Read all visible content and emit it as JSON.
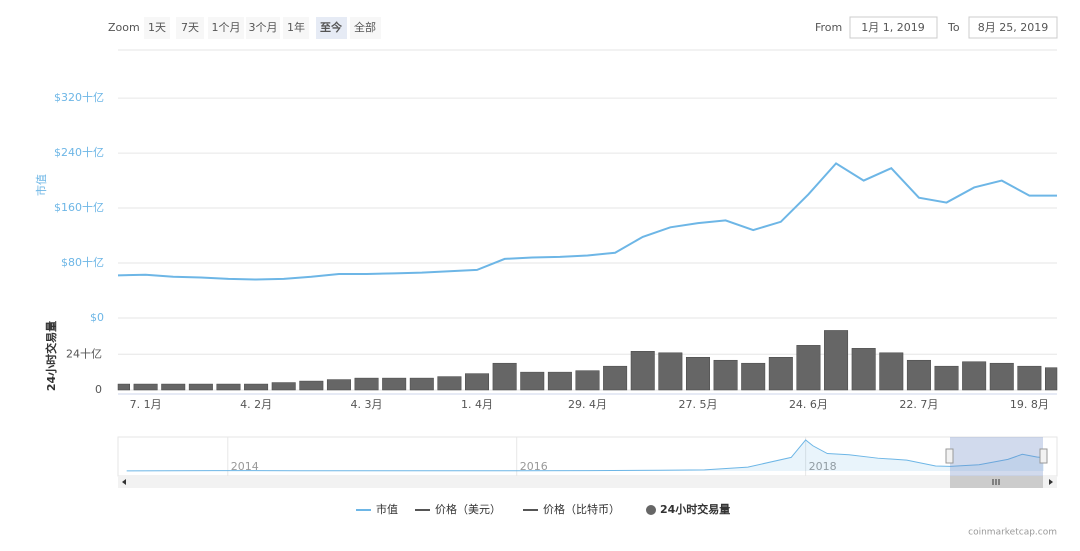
{
  "chart_data": [
    {
      "type": "line",
      "ylabel": "市值",
      "y2label": "24小时交易量",
      "categories": [
        null,
        "7. 1月",
        null,
        null,
        null,
        "4. 2月",
        null,
        null,
        null,
        "4. 3月",
        null,
        null,
        null,
        "1. 4月",
        null,
        null,
        null,
        "29. 4月",
        null,
        null,
        null,
        "27. 5月",
        null,
        null,
        null,
        "24. 6月",
        null,
        null,
        null,
        "22. 7月",
        null,
        null,
        null,
        "19. 8月",
        null
      ],
      "series": [
        {
          "name": "市值",
          "color": "#6db6e6",
          "values": [
            62,
            63,
            60,
            59,
            57,
            56,
            57,
            60,
            64,
            64,
            65,
            66,
            68,
            70,
            86,
            88,
            89,
            91,
            95,
            118,
            132,
            138,
            142,
            128,
            140,
            180,
            225,
            200,
            218,
            175,
            168,
            190,
            200,
            178,
            178
          ]
        },
        {
          "name": "价格（美元）",
          "color": "#555555",
          "visible": false
        },
        {
          "name": "价格（比特币）",
          "color": "#555555",
          "visible": false
        },
        {
          "name": "24小时交易量",
          "color": "#666666",
          "type": "bar",
          "axis": "y2",
          "values": [
            4,
            4,
            4,
            4,
            4,
            4,
            5,
            6,
            7,
            8,
            8,
            8,
            9,
            11,
            18,
            12,
            12,
            13,
            16,
            26,
            25,
            22,
            20,
            18,
            22,
            30,
            40,
            28,
            25,
            20,
            16,
            19,
            18,
            16,
            15
          ]
        }
      ],
      "ylim": [
        0,
        390
      ],
      "yticks": [
        {
          "value": 0,
          "label": "$0"
        },
        {
          "value": 80,
          "label": "$80十亿"
        },
        {
          "value": 160,
          "label": "$160十亿"
        },
        {
          "value": 240,
          "label": "$240十亿"
        },
        {
          "value": 320,
          "label": "$320十亿"
        }
      ],
      "y2lim": [
        0,
        45
      ],
      "y2ticks": [
        0,
        {
          "value": 24,
          "label": "24十亿"
        }
      ],
      "grid": true
    },
    {
      "type": "area",
      "color": "#6db6e6",
      "x": [
        2013.3,
        2013.9,
        2014.5,
        2015,
        2015.5,
        2016,
        2016.5,
        2017,
        2017.3,
        2017.6,
        2017.9,
        2018.0,
        2018.05,
        2018.15,
        2018.3,
        2018.5,
        2018.7,
        2018.9,
        2019.0,
        2019.2,
        2019.4,
        2019.5,
        2019.6,
        2019.65
      ],
      "values": [
        2,
        10,
        8,
        5,
        5,
        7,
        10,
        18,
        30,
        100,
        350,
        800,
        650,
        450,
        420,
        330,
        280,
        130,
        120,
        160,
        300,
        430,
        360,
        340
      ],
      "xlim": [
        2013.24,
        2019.74
      ],
      "xticks": [
        2014,
        2016,
        2018
      ],
      "ylim": [
        0,
        850
      ]
    }
  ],
  "zoom": {
    "label": "Zoom",
    "buttons": [
      "1天",
      "7天",
      "1个月",
      "3个月",
      "1年",
      "至今",
      "全部"
    ],
    "selected": 5
  },
  "range": {
    "from_label": "From",
    "from": "1月 1, 2019",
    "to_label": "To",
    "to": "8月 25, 2019"
  },
  "credits": "coinmarketcap.com"
}
